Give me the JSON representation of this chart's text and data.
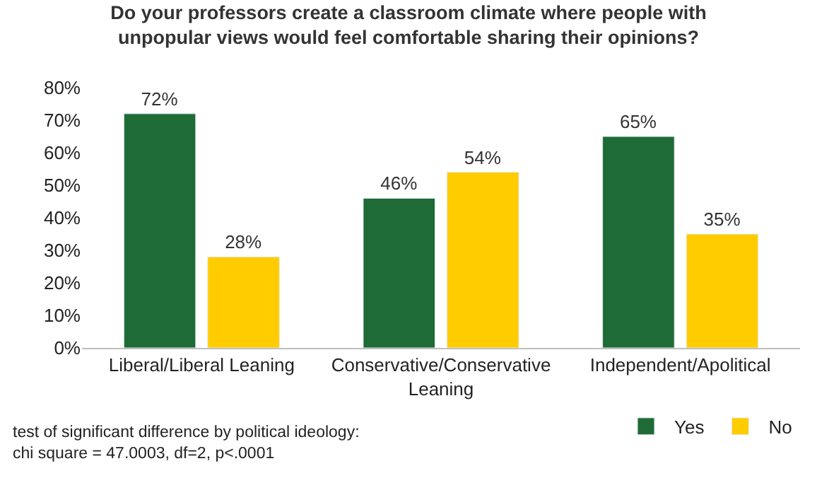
{
  "chart_data": {
    "type": "bar",
    "title": "Do your professors create a classroom climate where people with unpopular views would feel comfortable sharing their opinions?",
    "categories": [
      "Liberal/Liberal Leaning",
      "Conservative/Conservative Leaning",
      "Independent/Apolitical"
    ],
    "series": [
      {
        "name": "Yes",
        "color": "#1e6b35",
        "values": [
          72,
          46,
          65
        ],
        "value_labels": [
          "72%",
          "46%",
          "65%"
        ]
      },
      {
        "name": "No",
        "color": "#ffcc00",
        "values": [
          28,
          54,
          35
        ],
        "value_labels": [
          "28%",
          "54%",
          "35%"
        ]
      }
    ],
    "ylim": [
      0,
      80
    ],
    "yticks": [
      {
        "value": 0,
        "label": "0%"
      },
      {
        "value": 10,
        "label": "10%"
      },
      {
        "value": 20,
        "label": "20%"
      },
      {
        "value": 30,
        "label": "30%"
      },
      {
        "value": 40,
        "label": "40%"
      },
      {
        "value": 50,
        "label": "50%"
      },
      {
        "value": 60,
        "label": "60%"
      },
      {
        "value": 70,
        "label": "70%"
      },
      {
        "value": 80,
        "label": "80%"
      }
    ],
    "grid": false,
    "legend": "bottom right",
    "annotations": [
      "test of significant difference by political ideology:",
      "chi square = 47.0003, df=2, p<.0001"
    ]
  }
}
